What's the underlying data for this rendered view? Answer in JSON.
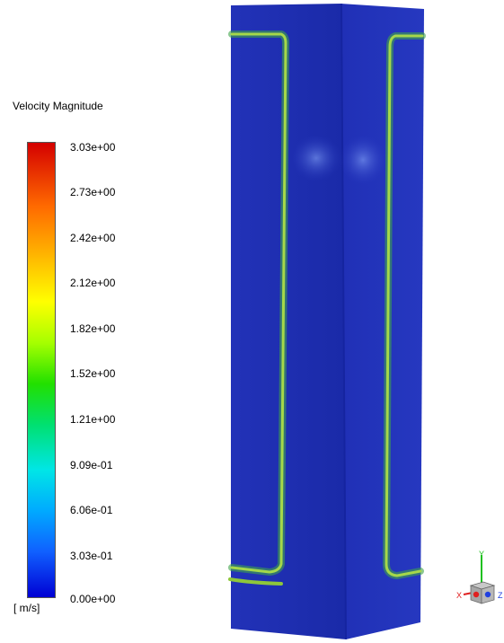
{
  "legend": {
    "title": "Velocity Magnitude",
    "units": "[ m/s]",
    "ticks": [
      "3.03e+00",
      "2.73e+00",
      "2.42e+00",
      "2.12e+00",
      "1.82e+00",
      "1.52e+00",
      "1.21e+00",
      "9.09e-01",
      "6.06e-01",
      "3.03e-01",
      "0.00e+00"
    ],
    "colormap": [
      "#d40000",
      "#ff6a00",
      "#ffb000",
      "#ffff00",
      "#a6ff00",
      "#22e000",
      "#00e070",
      "#00e6e6",
      "#00aaff",
      "#1060ff",
      "#0000d4"
    ]
  },
  "triad": {
    "axes": [
      "Y",
      "X",
      "Z"
    ]
  },
  "colors": {
    "solid": "#1f2fb5",
    "edge_band": "#8ec73a"
  }
}
